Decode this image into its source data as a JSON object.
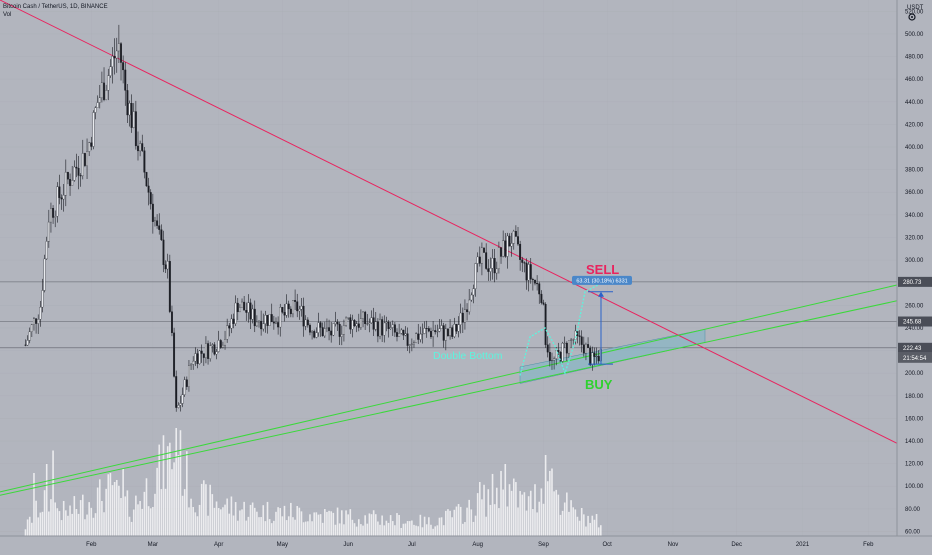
{
  "header": {
    "symbol_line": "Bitcoin Cash / TetherUS, 1D, BINANCE",
    "volume_label": "Vol",
    "currency": "USDT",
    "settings_icon": "gear-icon"
  },
  "colors": {
    "background": "#b2b5be",
    "candle": "#1b1d24",
    "volume": "#ffffff",
    "grid": "#9fa3ab",
    "resistance_line": "#e8245f",
    "support_line": "#3ad93a",
    "double_bottom_path": "#5cf5de",
    "zone_fill": "#88b6c4",
    "measure": "#2a62c9",
    "last_price_badge": "#4a4d57",
    "measure_badge": "#4a87c9"
  },
  "chart_data": {
    "type": "candlestick",
    "x_ticks": [
      "Feb",
      "Mar",
      "Apr",
      "May",
      "Jun",
      "Jul",
      "Aug",
      "Sep",
      "Oct",
      "Nov",
      "Dec",
      "2021",
      "Feb"
    ],
    "y_ticks": [
      60,
      80,
      100,
      120,
      140,
      160,
      180,
      200,
      220,
      240,
      260,
      280,
      300,
      320,
      340,
      360,
      380,
      400,
      420,
      440,
      460,
      480,
      500,
      520
    ],
    "y_range": [
      56,
      530
    ],
    "price_labels": {
      "last_price": "280.73",
      "level_1": "245.68",
      "level_2": "222.43",
      "countdown": "21:54:54"
    },
    "horizontal_levels": [
      280.73,
      245.68,
      222.43
    ],
    "annotations": {
      "sell": "SELL",
      "buy": "BUY",
      "pattern": "Double Bottom",
      "measure": "63.31 (30.18%) 6331"
    },
    "anchors": [
      [
        "2020-01-01",
        225
      ],
      [
        "2020-01-08",
        260
      ],
      [
        "2020-01-12",
        340
      ],
      [
        "2020-01-18",
        360
      ],
      [
        "2020-01-24",
        380
      ],
      [
        "2020-01-30",
        395
      ],
      [
        "2020-02-04",
        440
      ],
      [
        "2020-02-10",
        470
      ],
      [
        "2020-02-14",
        490
      ],
      [
        "2020-02-17",
        450
      ],
      [
        "2020-02-22",
        410
      ],
      [
        "2020-02-27",
        370
      ],
      [
        "2020-03-03",
        325
      ],
      [
        "2020-03-08",
        290
      ],
      [
        "2020-03-12",
        165
      ],
      [
        "2020-03-14",
        175
      ],
      [
        "2020-03-20",
        215
      ],
      [
        "2020-03-28",
        222
      ],
      [
        "2020-04-05",
        235
      ],
      [
        "2020-04-10",
        262
      ],
      [
        "2020-04-18",
        248
      ],
      [
        "2020-05-01",
        250
      ],
      [
        "2020-05-08",
        258
      ],
      [
        "2020-05-15",
        240
      ],
      [
        "2020-05-25",
        235
      ],
      [
        "2020-06-01",
        246
      ],
      [
        "2020-06-10",
        245
      ],
      [
        "2020-06-20",
        238
      ],
      [
        "2020-06-28",
        227
      ],
      [
        "2020-07-05",
        235
      ],
      [
        "2020-07-12",
        238
      ],
      [
        "2020-07-20",
        233
      ],
      [
        "2020-07-25",
        250
      ],
      [
        "2020-07-30",
        285
      ],
      [
        "2020-08-03",
        300
      ],
      [
        "2020-08-08",
        295
      ],
      [
        "2020-08-12",
        305
      ],
      [
        "2020-08-17",
        320
      ],
      [
        "2020-08-22",
        295
      ],
      [
        "2020-08-26",
        285
      ],
      [
        "2020-08-31",
        272
      ],
      [
        "2020-09-02",
        232
      ],
      [
        "2020-09-05",
        208
      ],
      [
        "2020-09-10",
        220
      ],
      [
        "2020-09-15",
        230
      ],
      [
        "2020-09-20",
        225
      ],
      [
        "2020-09-24",
        210
      ],
      [
        "2020-09-28",
        218
      ]
    ],
    "volume_anchors": [
      [
        "2020-01-01",
        10
      ],
      [
        "2020-01-10",
        40
      ],
      [
        "2020-01-20",
        25
      ],
      [
        "2020-02-10",
        50
      ],
      [
        "2020-02-20",
        30
      ],
      [
        "2020-03-12",
        95
      ],
      [
        "2020-03-20",
        45
      ],
      [
        "2020-04-10",
        30
      ],
      [
        "2020-05-10",
        25
      ],
      [
        "2020-06-10",
        20
      ],
      [
        "2020-07-10",
        15
      ],
      [
        "2020-07-30",
        30
      ],
      [
        "2020-08-12",
        55
      ],
      [
        "2020-08-25",
        35
      ],
      [
        "2020-09-03",
        60
      ],
      [
        "2020-09-15",
        25
      ],
      [
        "2020-09-28",
        15
      ]
    ],
    "volume_peaks": [
      [
        "2020-01-05",
        70
      ],
      [
        "2020-01-11",
        80
      ],
      [
        "2020-01-14",
        95
      ],
      [
        "2020-02-12",
        60
      ],
      [
        "2020-02-16",
        75
      ],
      [
        "2020-03-12",
        120
      ],
      [
        "2020-03-13",
        90
      ],
      [
        "2020-08-02",
        60
      ],
      [
        "2020-08-14",
        80
      ],
      [
        "2020-09-02",
        90
      ],
      [
        "2020-09-05",
        75
      ]
    ],
    "start_date": "2020-01-01",
    "end_date": "2020-09-28"
  }
}
